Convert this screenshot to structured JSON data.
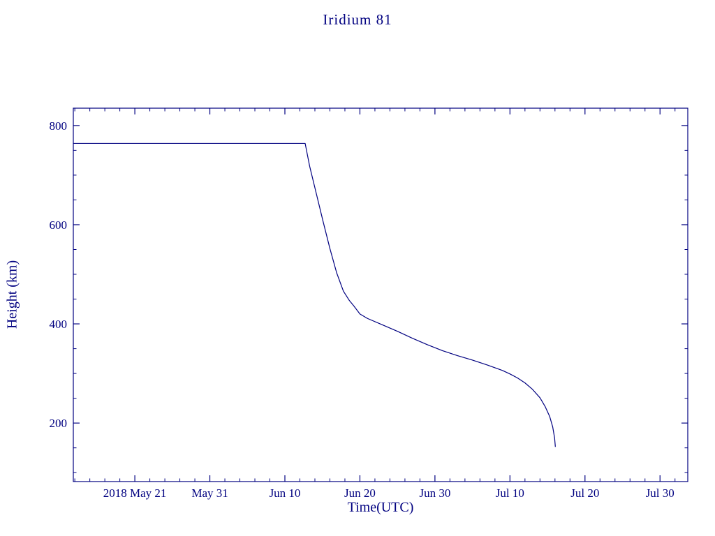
{
  "page": {
    "title": "Iridium 81"
  },
  "chart_data": {
    "type": "line",
    "title": "Iridium 81",
    "xlabel": "Time(UTC)",
    "ylabel": "Height (km)",
    "grid": false,
    "legend": "none",
    "frame_color": "#000080",
    "line_color": "#000080",
    "x_axis": {
      "unit": "days relative to 2018 May 21",
      "tick_days": [
        0,
        10,
        20,
        30,
        40,
        50,
        60,
        70
      ],
      "tick_labels": [
        "2018 May 21",
        "May 31",
        "Jun 10",
        "Jun 20",
        "Jun 30",
        "Jul 10",
        "Jul 20",
        "Jul 30"
      ],
      "range_days": [
        -8.2,
        73.7
      ],
      "minor_step_days": 2
    },
    "y_axis": {
      "ticks": [
        200,
        400,
        600,
        800
      ],
      "range": [
        82,
        835
      ],
      "minor_step": 50
    },
    "series": [
      {
        "name": "Iridium 81 height",
        "points": [
          [
            -8.2,
            764
          ],
          [
            0,
            764
          ],
          [
            10,
            764
          ],
          [
            20,
            764
          ],
          [
            22.7,
            764
          ],
          [
            23.3,
            718
          ],
          [
            24.2,
            662
          ],
          [
            25.1,
            606
          ],
          [
            26.0,
            552
          ],
          [
            26.9,
            503
          ],
          [
            27.8,
            466
          ],
          [
            28.6,
            447
          ],
          [
            29.2,
            436
          ],
          [
            30,
            420
          ],
          [
            31,
            411
          ],
          [
            33,
            398
          ],
          [
            35,
            385
          ],
          [
            37,
            371
          ],
          [
            39,
            358
          ],
          [
            41,
            346
          ],
          [
            43,
            336
          ],
          [
            45,
            327
          ],
          [
            47,
            317
          ],
          [
            49,
            306
          ],
          [
            50,
            299
          ],
          [
            51,
            291
          ],
          [
            52,
            281
          ],
          [
            53,
            268
          ],
          [
            54,
            251
          ],
          [
            54.7,
            233
          ],
          [
            55.3,
            213
          ],
          [
            55.7,
            192
          ],
          [
            55.95,
            170
          ],
          [
            56.05,
            152
          ]
        ]
      }
    ]
  }
}
